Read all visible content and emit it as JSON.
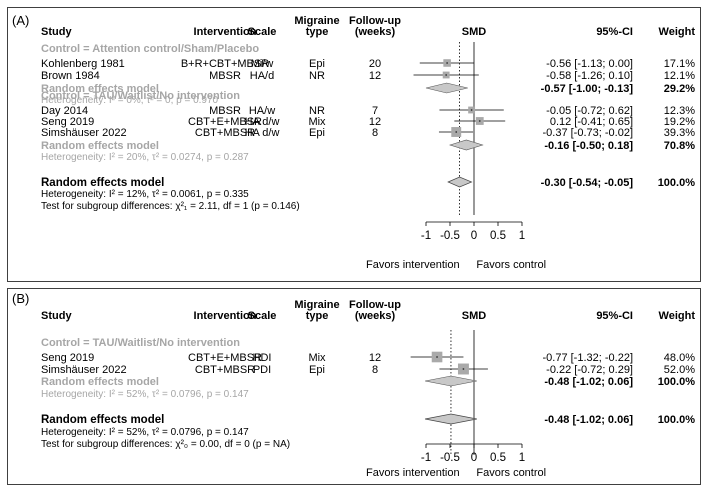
{
  "chart_data": [
    {
      "type": "forest",
      "panel_label": "(A)",
      "columns": {
        "study": "Study",
        "intervention": "Intervention",
        "scale": "Scale",
        "migraine_type": [
          "Migraine",
          "type"
        ],
        "follow_up": [
          "Follow-up",
          "(weeks)"
        ],
        "effect": "SMD",
        "ci": "95%-CI",
        "weight": "Weight"
      },
      "xlim": [
        -1,
        1
      ],
      "reference_line": 0,
      "overall_line": -0.3,
      "x_ticks": [
        -1,
        -0.5,
        0,
        0.5,
        1
      ],
      "x_tick_labels": [
        "-1",
        "-0.5",
        "0",
        "0.5",
        "1"
      ],
      "favors_left": "Favors intervention",
      "favors_right": "Favors control",
      "subgroups": [
        {
          "header": "Control = Attention control/Sham/Placebo",
          "studies": [
            {
              "study": "Kohlenberg 1981",
              "intervention": "B+R+CBT+MBSR",
              "scale": "Mi/w",
              "type": "Epi",
              "followup": "20",
              "smd": -0.56,
              "lower": -1.13,
              "upper": 0.0,
              "ci_text": "-0.56  [-1.13; 0.00]",
              "weight_text": "17.1%",
              "weight": 17.1
            },
            {
              "study": "Brown 1984",
              "intervention": "MBSR",
              "scale": "HA/d",
              "type": "NR",
              "followup": "12",
              "smd": -0.58,
              "lower": -1.26,
              "upper": 0.1,
              "ci_text": "-0.58  [-1.26; 0.10]",
              "weight_text": "12.1%",
              "weight": 12.1
            }
          ],
          "pooled": {
            "label": "Random effects model",
            "smd": -0.57,
            "lower": -1.0,
            "upper": -0.13,
            "ci_text": "-0.57  [-1.00; -0.13]",
            "weight_text": "29.2%"
          },
          "heterogeneity": "Heterogeneity: I² = 0%, τ² = 0, p = 0.970"
        },
        {
          "header": "Control = TAU/Waitlist/No intervention",
          "studies": [
            {
              "study": "Day 2014",
              "intervention": "MBSR",
              "scale": "HA/w",
              "type": "NR",
              "followup": "7",
              "smd": -0.05,
              "lower": -0.72,
              "upper": 0.62,
              "ci_text": "-0.05  [-0.72; 0.62]",
              "weight_text": "12.3%",
              "weight": 12.3
            },
            {
              "study": "Seng 2019",
              "intervention": "CBT+E+MBSR",
              "scale": "HA d/w",
              "type": "Mix",
              "followup": "12",
              "smd": 0.12,
              "lower": -0.41,
              "upper": 0.65,
              "ci_text": "0.12  [-0.41; 0.65]",
              "weight_text": "19.2%",
              "weight": 19.2
            },
            {
              "study": "Simshäuser 2022",
              "intervention": "CBT+MBSR",
              "scale": "HA d/w",
              "type": "Epi",
              "followup": "8",
              "smd": -0.37,
              "lower": -0.73,
              "upper": -0.02,
              "ci_text": "-0.37  [-0.73; -0.02]",
              "weight_text": "39.3%",
              "weight": 39.3
            }
          ],
          "pooled": {
            "label": "Random effects model",
            "smd": -0.16,
            "lower": -0.5,
            "upper": 0.18,
            "ci_text": "-0.16  [-0.50; 0.18]",
            "weight_text": "70.8%"
          },
          "heterogeneity": "Heterogeneity: I² = 20%, τ² = 0.0274, p = 0.287"
        }
      ],
      "overall": {
        "label": "Random effects model",
        "smd": -0.3,
        "lower": -0.54,
        "upper": -0.05,
        "ci_text": "-0.30  [-0.54; -0.05]",
        "weight_text": "100.0%"
      },
      "overall_heterogeneity": "Heterogeneity: I² = 12%, τ² = 0.0061, p = 0.335",
      "subgroup_test": "Test for subgroup differences: χ²₁ = 2.11, df = 1 (p = 0.146)"
    },
    {
      "type": "forest",
      "panel_label": "(B)",
      "columns": {
        "study": "Study",
        "intervention": "Intervention",
        "scale": "Scale",
        "migraine_type": [
          "Migraine",
          "type"
        ],
        "follow_up": [
          "Follow-up",
          "(weeks)"
        ],
        "effect": "SMD",
        "ci": "95%-CI",
        "weight": "Weight"
      },
      "xlim": [
        -1,
        1
      ],
      "reference_line": 0,
      "overall_line": -0.48,
      "x_ticks": [
        -1,
        -0.5,
        0,
        0.5,
        1
      ],
      "x_tick_labels": [
        "-1",
        "-0.5",
        "0",
        "0.5",
        "1"
      ],
      "favors_left": "Favors intervention",
      "favors_right": "Favors control",
      "subgroups": [
        {
          "header": "Control = TAU/Waitlist/No intervention",
          "studies": [
            {
              "study": "Seng 2019",
              "intervention": "CBT+E+MBSR",
              "scale": "HDI",
              "type": "Mix",
              "followup": "12",
              "smd": -0.77,
              "lower": -1.32,
              "upper": -0.22,
              "ci_text": "-0.77  [-1.32; -0.22]",
              "weight_text": "48.0%",
              "weight": 48.0
            },
            {
              "study": "Simshäuser 2022",
              "intervention": "CBT+MBSR",
              "scale": "PDI",
              "type": "Epi",
              "followup": "8",
              "smd": -0.22,
              "lower": -0.72,
              "upper": 0.29,
              "ci_text": "-0.22  [-0.72; 0.29]",
              "weight_text": "52.0%",
              "weight": 52.0
            }
          ],
          "pooled": {
            "label": "Random effects model",
            "smd": -0.48,
            "lower": -1.02,
            "upper": 0.06,
            "ci_text": "-0.48  [-1.02; 0.06]",
            "weight_text": "100.0%"
          },
          "heterogeneity": "Heterogeneity: I² = 52%, τ² = 0.0796, p = 0.147"
        }
      ],
      "overall": {
        "label": "Random effects model",
        "smd": -0.48,
        "lower": -1.02,
        "upper": 0.06,
        "ci_text": "-0.48  [-1.02; 0.06]",
        "weight_text": "100.0%"
      },
      "overall_heterogeneity": "Heterogeneity: I² = 52%, τ² = 0.0796, p = 0.147",
      "subgroup_test": "Test for subgroup differences: χ²₀ = 0.00, df = 0 (p = NA)"
    }
  ],
  "colors": {
    "text": "#000000",
    "subgroup_text": "#a6a6a6",
    "square": "#a9a9a9",
    "diamond": "#c8c8c8",
    "panel_border": "#404040"
  }
}
